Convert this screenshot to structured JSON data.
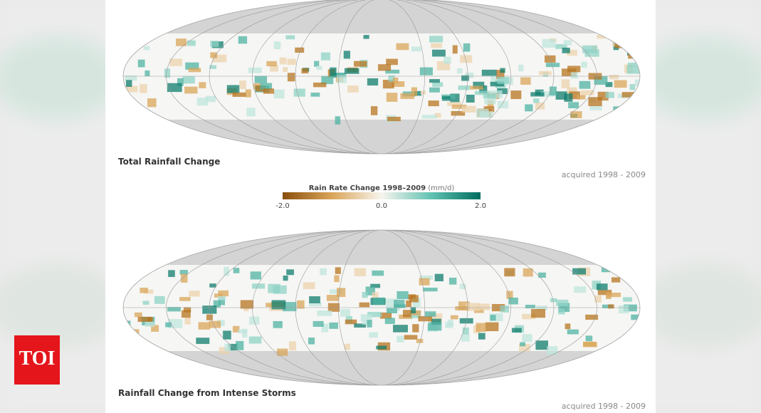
{
  "maps": [
    {
      "caption": "Total Rainfall Change",
      "acquired": "acquired 1998 - 2009"
    },
    {
      "caption": "Rainfall Change from Intense Storms",
      "acquired": "acquired 1998 - 2009"
    }
  ],
  "colorbar": {
    "title": "Rain Rate Change 1998–2009",
    "unit": "(mm/d)",
    "ticks": [
      "-2.0",
      "0.0",
      "2.0"
    ]
  },
  "logo": "TOI"
}
